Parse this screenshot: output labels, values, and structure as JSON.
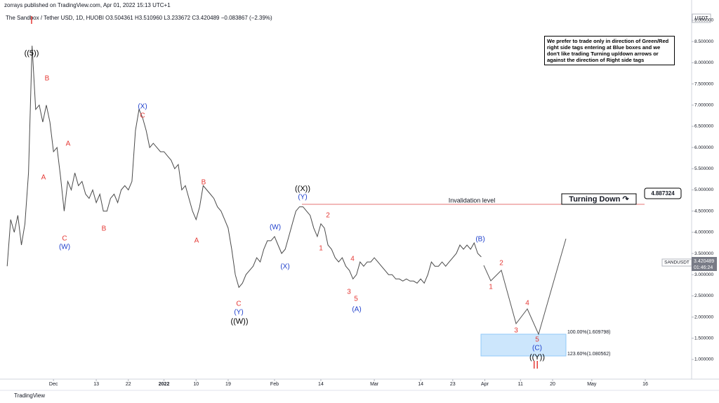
{
  "header": {
    "publisher": "zorrays published on TradingView.com, Apr 01, 2022 15:13 UTC+1",
    "symbol": "The Sandbox / Tether USD, 1D, HUOBI  O3.504361 H3.510960 L3.233672 C3.420489 −0.083867 (−2.39%)"
  },
  "note": "We prefer to trade only in direction of Green/Red right side tags entering at Blue boxes and we don't like trading Turning up/down arrows or against the direction of Right side tags",
  "invalidation": "Invalidation level",
  "turning": "Turning Down ↷",
  "turning_price": "4.887324",
  "fib_100": "100.00%(1.609798)",
  "fib_123": "123.60%(1.080562)",
  "price_tag": {
    "symbol": "SANDUSDT",
    "price": "3.420489",
    "countdown": "01:46:24"
  },
  "currency": "USDT",
  "footer": "TradingView",
  "annotations": [
    "I",
    "((5))",
    "B",
    "A",
    "A",
    "C",
    "(W)",
    "(X)",
    "C",
    "B",
    "B",
    "A",
    "((X))",
    "(Y)",
    "(W)",
    "(X)",
    "2",
    "1",
    "4",
    "3",
    "5",
    "(A)",
    "C",
    "(Y)",
    "((W))",
    "(B)",
    "2",
    "1",
    "4",
    "3",
    "5",
    "(C)",
    "((Y))",
    "II"
  ],
  "chart_data": {
    "type": "line",
    "color": "#4a4a4a",
    "x": [
      -13,
      -12,
      -11,
      -10,
      -9,
      -8,
      -7,
      -6,
      -5,
      -4,
      -3,
      -2,
      -1,
      0,
      1,
      2,
      3,
      4,
      5,
      6,
      7,
      8,
      9,
      10,
      11,
      12,
      13,
      14,
      15,
      16,
      17,
      18,
      19,
      20,
      21,
      22,
      23,
      24,
      25,
      26,
      27,
      28,
      29,
      30,
      31,
      32,
      33,
      34,
      35,
      36,
      37,
      38,
      39,
      40,
      41,
      42,
      43,
      44,
      45,
      46,
      47,
      48,
      49,
      50,
      51,
      52,
      53,
      54,
      55,
      56,
      57,
      58,
      59,
      60,
      61,
      62,
      63,
      64,
      65,
      66,
      67,
      68,
      69,
      70,
      71,
      72,
      73,
      74,
      75,
      76,
      77,
      78,
      79,
      80,
      81,
      82,
      83,
      84,
      85,
      86,
      87,
      88,
      89,
      90,
      91,
      92,
      93,
      94,
      95,
      96,
      97,
      98,
      99,
      100,
      101,
      102,
      103,
      104,
      105,
      106,
      107,
      108,
      109,
      110,
      111,
      112,
      113,
      114,
      115,
      116,
      117,
      118,
      119,
      120
    ],
    "values": [
      3.2,
      4.3,
      4.0,
      4.4,
      3.7,
      4.2,
      5.4,
      8.4,
      6.9,
      7.0,
      6.6,
      7.0,
      6.6,
      5.9,
      6.0,
      5.3,
      4.5,
      5.2,
      5.0,
      5.4,
      5.1,
      5.2,
      4.9,
      4.8,
      5.0,
      4.7,
      4.9,
      4.5,
      4.5,
      4.8,
      4.9,
      4.7,
      5.0,
      5.1,
      5.0,
      5.2,
      6.4,
      6.9,
      6.7,
      6.4,
      6.0,
      6.1,
      6.0,
      5.9,
      5.9,
      5.8,
      5.7,
      5.5,
      5.6,
      5.0,
      5.1,
      4.8,
      4.5,
      4.3,
      4.6,
      5.1,
      5.0,
      4.9,
      4.8,
      4.6,
      4.5,
      4.3,
      4.1,
      3.6,
      3.0,
      2.7,
      2.8,
      3.0,
      3.1,
      3.2,
      3.4,
      3.3,
      3.6,
      3.8,
      3.8,
      3.9,
      3.7,
      3.5,
      3.6,
      3.9,
      4.2,
      4.5,
      4.6,
      4.6,
      4.5,
      4.4,
      4.1,
      3.9,
      4.2,
      4.1,
      3.7,
      3.6,
      3.4,
      3.3,
      3.4,
      3.2,
      3.1,
      2.9,
      3.0,
      3.3,
      3.2,
      3.3,
      3.3,
      3.4,
      3.3,
      3.2,
      3.1,
      3.0,
      3.0,
      2.9,
      2.9,
      2.85,
      2.9,
      2.85,
      2.85,
      2.8,
      2.9,
      2.8,
      3.0,
      3.3,
      3.2,
      3.2,
      3.3,
      3.2,
      3.3,
      3.4,
      3.5,
      3.7,
      3.6,
      3.7,
      3.6,
      3.75,
      3.5,
      3.42
    ],
    "xlim": [
      -15,
      179
    ],
    "xticks": [
      {
        "value": 0,
        "label": "Dec"
      },
      {
        "value": 12,
        "label": "13"
      },
      {
        "value": 21,
        "label": "22"
      },
      {
        "value": 31,
        "label": "2022"
      },
      {
        "value": 40,
        "label": "10"
      },
      {
        "value": 49,
        "label": "19"
      },
      {
        "value": 62,
        "label": "Feb"
      },
      {
        "value": 75,
        "label": "14"
      },
      {
        "value": 90,
        "label": "Mar"
      },
      {
        "value": 103,
        "label": "14"
      },
      {
        "value": 112,
        "label": "23"
      },
      {
        "value": 121,
        "label": "Apr"
      },
      {
        "value": 131,
        "label": "11"
      },
      {
        "value": 140,
        "label": "20"
      },
      {
        "value": 151,
        "label": "May"
      },
      {
        "value": 166,
        "label": "16"
      }
    ],
    "ylim": [
      0.536,
      9.48
    ],
    "yticks": [
      {
        "value": 1,
        "label": "1.000000"
      },
      {
        "value": 1.5,
        "label": "1.500000"
      },
      {
        "value": 2,
        "label": "2.000000"
      },
      {
        "value": 2.5,
        "label": "2.500000"
      },
      {
        "value": 3,
        "label": "3.000000"
      },
      {
        "value": 3.5,
        "label": "3.500000"
      },
      {
        "value": 4,
        "label": "4.000000"
      },
      {
        "value": 4.5,
        "label": "4.500000"
      },
      {
        "value": 5,
        "label": "5.000000"
      },
      {
        "value": 5.5,
        "label": "5.500000"
      },
      {
        "value": 6,
        "label": "6.000000"
      },
      {
        "value": 6.5,
        "label": "6.500000"
      },
      {
        "value": 7,
        "label": "7.000000"
      },
      {
        "value": 7.5,
        "label": "7.500000"
      },
      {
        "value": 8,
        "label": "8.000000"
      },
      {
        "value": 8.5,
        "label": "8.500000"
      },
      {
        "value": 9,
        "label": "9.000000"
      }
    ]
  }
}
